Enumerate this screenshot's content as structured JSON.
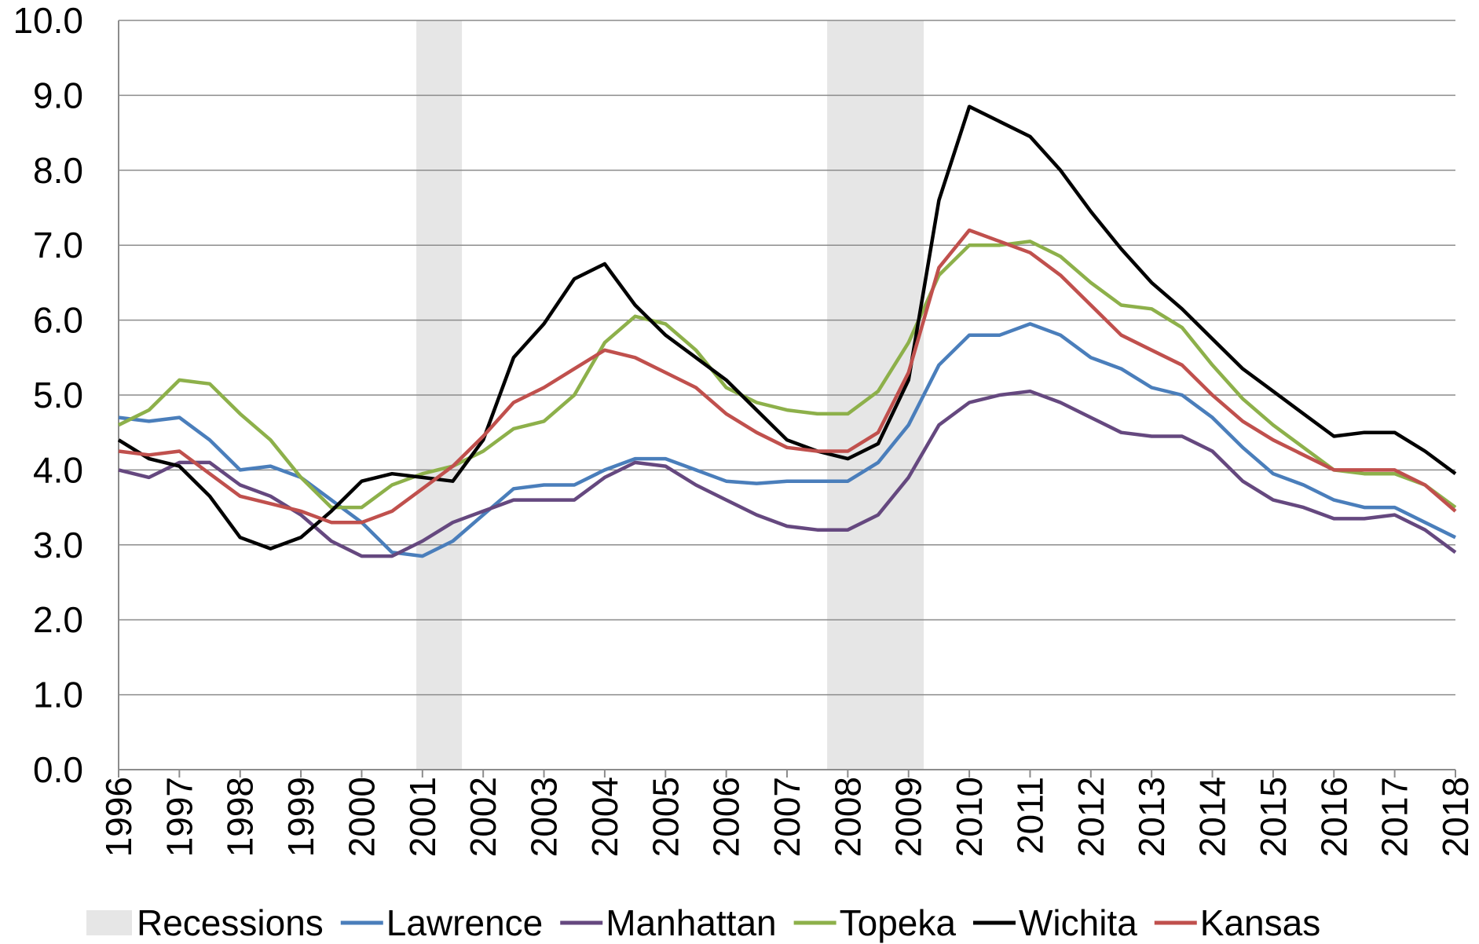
{
  "chart_data": {
    "type": "line",
    "xlim": [
      1996,
      2018
    ],
    "xticks": [
      1996,
      1997,
      1998,
      1999,
      2000,
      2001,
      2002,
      2003,
      2004,
      2005,
      2006,
      2007,
      2008,
      2009,
      2010,
      2011,
      2012,
      2013,
      2014,
      2015,
      2016,
      2017,
      2018
    ],
    "ylim": [
      0,
      10
    ],
    "yticks": [
      {
        "value": 0,
        "label": "0.0"
      },
      {
        "value": 1,
        "label": "1.0"
      },
      {
        "value": 2,
        "label": "2.0"
      },
      {
        "value": 3,
        "label": "3.0"
      },
      {
        "value": 4,
        "label": "4.0"
      },
      {
        "value": 5,
        "label": "5.0"
      },
      {
        "value": 6,
        "label": "6.0"
      },
      {
        "value": 7,
        "label": "7.0"
      },
      {
        "value": 8,
        "label": "8.0"
      },
      {
        "value": 9,
        "label": "9.0"
      },
      {
        "value": 10,
        "label": "10.0"
      }
    ],
    "grid": true,
    "legend": "bottom",
    "recessions": {
      "name": "Recessions",
      "color": "#e6e6e6",
      "periods": [
        [
          2000.9,
          2001.65
        ],
        [
          2007.66,
          2009.25
        ]
      ]
    },
    "x": [
      1996,
      1996.5,
      1997,
      1997.5,
      1998,
      1998.5,
      1999,
      1999.5,
      2000,
      2000.5,
      2001,
      2001.5,
      2002,
      2002.5,
      2003,
      2003.5,
      2004,
      2004.5,
      2005,
      2005.5,
      2006,
      2006.5,
      2007,
      2007.5,
      2008,
      2008.5,
      2009,
      2009.5,
      2010,
      2010.5,
      2011,
      2011.5,
      2012,
      2012.5,
      2013,
      2013.5,
      2014,
      2014.5,
      2015,
      2015.5,
      2016,
      2016.5,
      2017,
      2017.5,
      2018
    ],
    "series": [
      {
        "name": "Lawrence",
        "color": "#4a7ebb",
        "values": [
          4.7,
          4.65,
          4.7,
          4.4,
          4.0,
          4.05,
          3.9,
          3.6,
          3.3,
          2.9,
          2.85,
          3.05,
          3.4,
          3.75,
          3.8,
          3.8,
          4.0,
          4.15,
          4.15,
          4.0,
          3.85,
          3.82,
          3.85,
          3.85,
          3.85,
          4.1,
          4.6,
          5.4,
          5.8,
          5.8,
          5.95,
          5.8,
          5.5,
          5.35,
          5.1,
          5.0,
          4.7,
          4.3,
          3.95,
          3.8,
          3.6,
          3.5,
          3.5,
          3.3,
          3.1
        ]
      },
      {
        "name": "Manhattan",
        "color": "#65487f",
        "values": [
          4.0,
          3.9,
          4.1,
          4.1,
          3.8,
          3.65,
          3.4,
          3.05,
          2.85,
          2.85,
          3.05,
          3.3,
          3.45,
          3.6,
          3.6,
          3.6,
          3.9,
          4.1,
          4.05,
          3.8,
          3.6,
          3.4,
          3.25,
          3.2,
          3.2,
          3.4,
          3.9,
          4.6,
          4.9,
          5.0,
          5.05,
          4.9,
          4.7,
          4.5,
          4.45,
          4.45,
          4.25,
          3.85,
          3.6,
          3.5,
          3.35,
          3.35,
          3.4,
          3.2,
          2.9
        ]
      },
      {
        "name": "Topeka",
        "color": "#8db04a",
        "values": [
          4.6,
          4.8,
          5.2,
          5.15,
          4.75,
          4.4,
          3.9,
          3.5,
          3.5,
          3.8,
          3.95,
          4.05,
          4.25,
          4.55,
          4.65,
          5.0,
          5.7,
          6.05,
          5.95,
          5.6,
          5.1,
          4.9,
          4.8,
          4.75,
          4.75,
          5.05,
          5.7,
          6.6,
          7.0,
          7.0,
          7.05,
          6.85,
          6.5,
          6.2,
          6.15,
          5.9,
          5.4,
          4.95,
          4.6,
          4.3,
          4.0,
          3.95,
          3.95,
          3.8,
          3.5
        ]
      },
      {
        "name": "Wichita",
        "color": "#000000",
        "values": [
          4.4,
          4.15,
          4.05,
          3.65,
          3.1,
          2.95,
          3.1,
          3.45,
          3.85,
          3.95,
          3.9,
          3.85,
          4.4,
          5.5,
          5.95,
          6.55,
          6.75,
          6.2,
          5.8,
          5.5,
          5.2,
          4.8,
          4.4,
          4.25,
          4.15,
          4.35,
          5.2,
          7.6,
          8.85,
          8.65,
          8.45,
          8.0,
          7.45,
          6.95,
          6.5,
          6.15,
          5.75,
          5.35,
          5.05,
          4.75,
          4.45,
          4.5,
          4.5,
          4.25,
          3.95
        ]
      },
      {
        "name": "Kansas",
        "color": "#c0504d",
        "values": [
          4.25,
          4.2,
          4.25,
          3.95,
          3.65,
          3.55,
          3.45,
          3.3,
          3.3,
          3.45,
          3.75,
          4.05,
          4.45,
          4.9,
          5.1,
          5.35,
          5.6,
          5.5,
          5.3,
          5.1,
          4.75,
          4.5,
          4.3,
          4.25,
          4.25,
          4.5,
          5.3,
          6.7,
          7.2,
          7.05,
          6.9,
          6.6,
          6.2,
          5.8,
          5.6,
          5.4,
          5.0,
          4.65,
          4.4,
          4.2,
          4.0,
          4.0,
          4.0,
          3.8,
          3.45
        ]
      }
    ]
  }
}
